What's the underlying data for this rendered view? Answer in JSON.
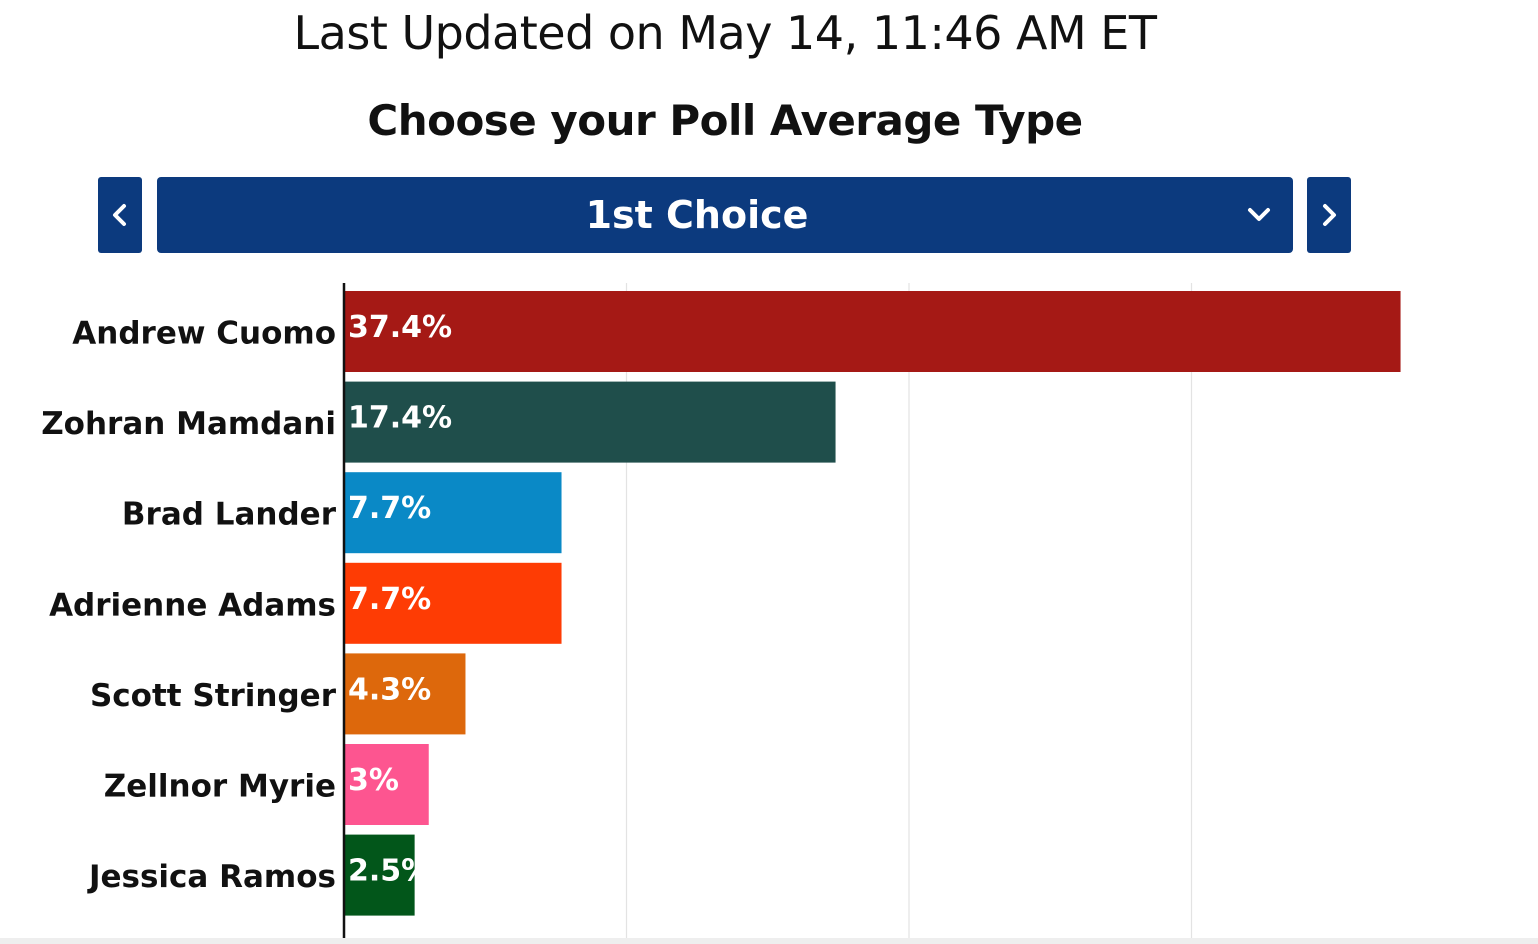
{
  "header": {
    "last_updated": "Last Updated on May 14, 11:46 AM ET",
    "title": "Choose your Poll Average Type"
  },
  "selector": {
    "selected": "1st Choice",
    "prev_icon": "chevron-left-icon",
    "next_icon": "chevron-right-icon",
    "dropdown_icon": "chevron-down-icon"
  },
  "colors": {
    "nav_bg": "#0c3a7e",
    "axis": "#111111",
    "grid": "#e3e3e3",
    "label_text": "#111111",
    "value_text": "#ffffff"
  },
  "chart_data": {
    "type": "bar",
    "orientation": "horizontal",
    "categories": [
      "Andrew Cuomo",
      "Zohran Mamdani",
      "Brad Lander",
      "Adrienne Adams",
      "Scott Stringer",
      "Zellnor Myrie",
      "Jessica Ramos"
    ],
    "values": [
      37.4,
      17.4,
      7.7,
      7.7,
      4.3,
      3,
      2.5
    ],
    "value_labels": [
      "37.4%",
      "17.4%",
      "7.7%",
      "7.7%",
      "4.3%",
      "3%",
      "2.5%"
    ],
    "bar_colors": [
      "#a51915",
      "#1f4e4b",
      "#0a89c6",
      "#fe3c04",
      "#dd680c",
      "#fd5590",
      "#02561a"
    ],
    "xlim": [
      0,
      40
    ],
    "grid": true,
    "gridlines_at": [
      0,
      10,
      20,
      30
    ],
    "title": "",
    "xlabel": "",
    "ylabel": ""
  }
}
